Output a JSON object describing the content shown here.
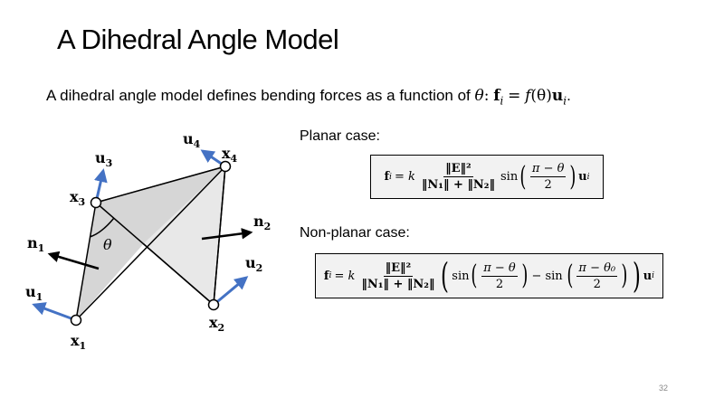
{
  "title": "A Dihedral Angle Model",
  "intro": {
    "text": "A dihedral angle model defines bending forces as a function of",
    "theta": "θ",
    "colon": ":",
    "f": "f",
    "i": "i",
    "eq": "=",
    "fn": "f",
    "arg": "(θ)",
    "u": "u",
    "ui": "i",
    "period": "."
  },
  "planar": {
    "label": "Planar case:",
    "lhs": "f",
    "lhs_sub": "i",
    "eq_k": "= k",
    "num": "‖E‖²",
    "den": "‖N₁‖ + ‖N₂‖",
    "sin": "sin",
    "inner_num": "π − θ",
    "inner_den": "2",
    "rhs": "u",
    "rhs_sub": "i"
  },
  "nonplanar": {
    "label": "Non-planar case:",
    "lhs": "f",
    "lhs_sub": "i",
    "eq_k": "= k",
    "num": "‖E‖²",
    "den": "‖N₁‖ + ‖N₂‖",
    "sin1": "sin",
    "inner1_num": "π − θ",
    "inner1_den": "2",
    "minus": "− sin",
    "inner2_num": "π − θ₀",
    "inner2_den": "2",
    "rhs": "u",
    "rhs_sub": "i"
  },
  "diagram": {
    "colors": {
      "face": "#dcdcdc",
      "face_front": "#e8e8e8",
      "arrow_blue": "#4472c4",
      "edge": "#000000"
    },
    "labels": {
      "x1": "x",
      "x1_sub": "1",
      "x2": "x",
      "x2_sub": "2",
      "x3": "x",
      "x3_sub": "3",
      "x4": "x",
      "x4_sub": "4",
      "u1": "u",
      "u1_sub": "1",
      "u2": "u",
      "u2_sub": "2",
      "u3": "u",
      "u3_sub": "3",
      "u4": "u",
      "u4_sub": "4",
      "n1": "n",
      "n1_sub": "1",
      "n2": "n",
      "n2_sub": "2",
      "theta": "θ"
    }
  },
  "page_number": "32"
}
